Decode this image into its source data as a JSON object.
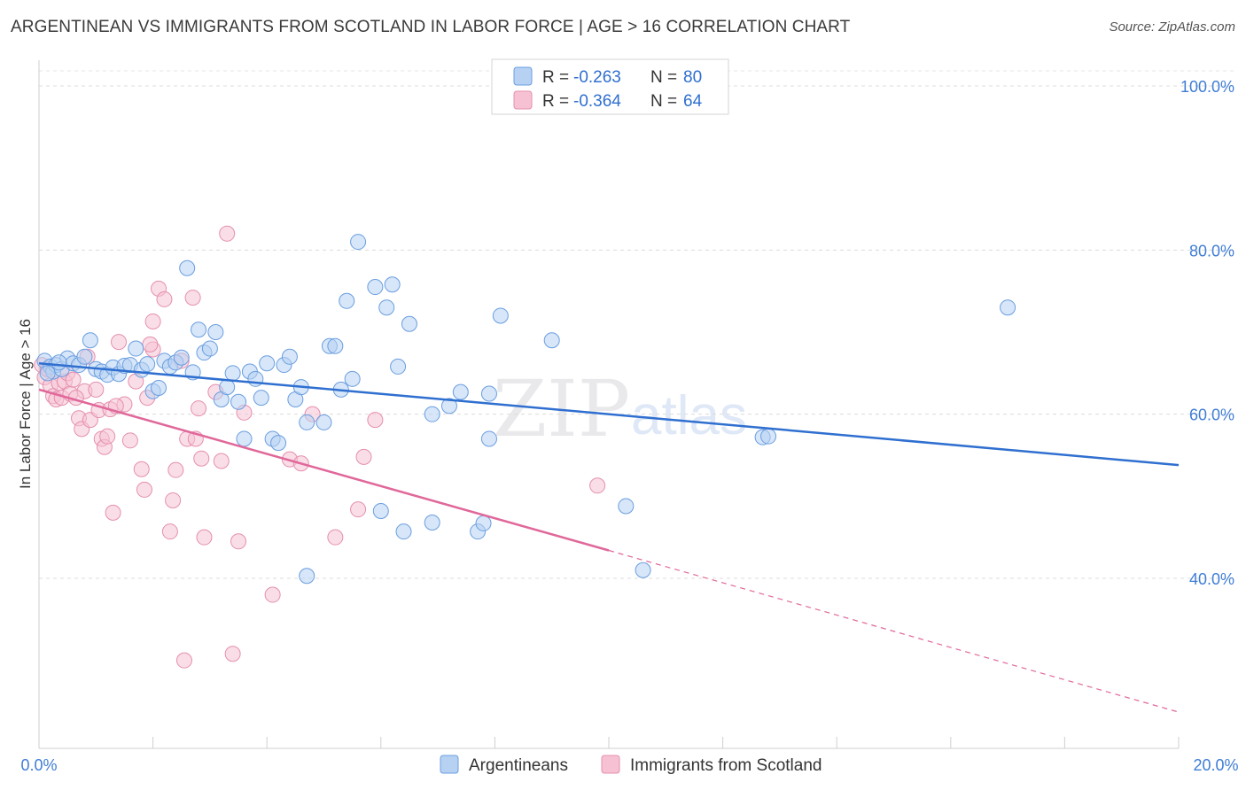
{
  "title": "ARGENTINEAN VS IMMIGRANTS FROM SCOTLAND IN LABOR FORCE | AGE > 16 CORRELATION CHART",
  "source": "Source: ZipAtlas.com",
  "watermark": {
    "zip": "ZIP",
    "atlas": "atlas"
  },
  "colors": {
    "blue": "#3f7dd6",
    "blue_fill": "#b7d1f3",
    "blue_line": "#2f6fd0",
    "pink": "#e8739c",
    "pink_fill": "#f6c2d3",
    "pink_line": "#e0689a"
  },
  "legend": {
    "r_label": "R =",
    "n_label": "N =",
    "series1": {
      "r": "-0.263",
      "n": "80"
    },
    "series2": {
      "r": "-0.364",
      "n": "64"
    }
  },
  "bottom_legend": {
    "series1": "Argentineans",
    "series2": "Immigrants from Scotland"
  },
  "chart_data": {
    "type": "scatter",
    "ylabel": "In Labor Force | Age > 16",
    "xlabel": "",
    "x_tick_labels": {
      "left": "0.0%",
      "right": "20.0%"
    },
    "y_tick_labels": [
      "100.0%",
      "80.0%",
      "60.0%",
      "40.0%"
    ],
    "y_ticks": [
      100,
      80,
      60,
      40
    ],
    "xlim": [
      0,
      20
    ],
    "ylim": [
      22,
      102
    ],
    "series": [
      {
        "name": "Argentineans",
        "trend": {
          "x0": 0,
          "y0": 66.2,
          "x1": 20,
          "y1": 53.8
        },
        "points": [
          [
            0.1,
            66.5
          ],
          [
            0.2,
            65.8
          ],
          [
            0.25,
            65.2
          ],
          [
            0.3,
            66.0
          ],
          [
            0.4,
            65.5
          ],
          [
            0.5,
            66.8
          ],
          [
            0.6,
            66.2
          ],
          [
            0.7,
            66.0
          ],
          [
            0.8,
            67.0
          ],
          [
            0.9,
            69.0
          ],
          [
            1.0,
            65.5
          ],
          [
            1.1,
            65.2
          ],
          [
            1.2,
            64.8
          ],
          [
            1.3,
            65.7
          ],
          [
            1.4,
            64.9
          ],
          [
            1.5,
            65.9
          ],
          [
            1.6,
            66.0
          ],
          [
            1.7,
            68.0
          ],
          [
            1.8,
            65.4
          ],
          [
            1.9,
            66.1
          ],
          [
            2.0,
            62.8
          ],
          [
            2.1,
            63.2
          ],
          [
            2.2,
            66.5
          ],
          [
            2.3,
            65.8
          ],
          [
            2.4,
            66.3
          ],
          [
            2.5,
            66.9
          ],
          [
            2.6,
            77.8
          ],
          [
            2.7,
            65.1
          ],
          [
            2.8,
            70.3
          ],
          [
            2.9,
            67.5
          ],
          [
            3.0,
            68.0
          ],
          [
            3.1,
            70.0
          ],
          [
            3.2,
            61.8
          ],
          [
            3.3,
            63.3
          ],
          [
            3.4,
            65.0
          ],
          [
            3.5,
            61.5
          ],
          [
            3.6,
            57.0
          ],
          [
            3.7,
            65.2
          ],
          [
            3.8,
            64.3
          ],
          [
            3.9,
            62.0
          ],
          [
            4.0,
            66.2
          ],
          [
            4.1,
            57.0
          ],
          [
            4.2,
            56.5
          ],
          [
            4.3,
            66.0
          ],
          [
            4.4,
            67.0
          ],
          [
            4.5,
            61.8
          ],
          [
            4.6,
            63.3
          ],
          [
            4.7,
            59.0
          ],
          [
            5.0,
            59.0
          ],
          [
            5.1,
            68.3
          ],
          [
            5.2,
            68.3
          ],
          [
            5.3,
            63.0
          ],
          [
            5.4,
            73.8
          ],
          [
            5.5,
            64.3
          ],
          [
            5.6,
            81.0
          ],
          [
            5.9,
            75.5
          ],
          [
            6.1,
            73.0
          ],
          [
            6.2,
            75.8
          ],
          [
            6.3,
            65.8
          ],
          [
            6.5,
            71.0
          ],
          [
            6.9,
            60.0
          ],
          [
            7.2,
            61.0
          ],
          [
            7.4,
            62.7
          ],
          [
            7.9,
            62.5
          ],
          [
            7.9,
            57.0
          ],
          [
            8.1,
            72.0
          ],
          [
            9.0,
            69.0
          ],
          [
            10.3,
            48.8
          ],
          [
            10.6,
            41.0
          ],
          [
            12.7,
            57.2
          ],
          [
            12.8,
            57.3
          ],
          [
            17.0,
            73.0
          ],
          [
            6.0,
            48.2
          ],
          [
            6.4,
            45.7
          ],
          [
            6.9,
            46.8
          ],
          [
            7.7,
            45.7
          ],
          [
            7.8,
            46.7
          ],
          [
            4.7,
            40.3
          ],
          [
            0.15,
            65.0
          ],
          [
            0.35,
            66.3
          ]
        ]
      },
      {
        "name": "Immigrants from Scotland",
        "trend": {
          "x0": 0,
          "y0": 63.0,
          "x1": 10.0,
          "y1": 43.4,
          "dash_to_x": 20,
          "dash_to_y": 23.7
        },
        "points": [
          [
            0.05,
            66.0
          ],
          [
            0.1,
            64.5
          ],
          [
            0.2,
            63.5
          ],
          [
            0.25,
            62.2
          ],
          [
            0.3,
            61.8
          ],
          [
            0.35,
            63.8
          ],
          [
            0.4,
            62.0
          ],
          [
            0.45,
            64.0
          ],
          [
            0.5,
            65.0
          ],
          [
            0.55,
            62.5
          ],
          [
            0.6,
            64.2
          ],
          [
            0.7,
            59.5
          ],
          [
            0.75,
            58.2
          ],
          [
            0.8,
            62.8
          ],
          [
            0.85,
            67.0
          ],
          [
            0.9,
            59.3
          ],
          [
            1.0,
            63.0
          ],
          [
            1.05,
            60.5
          ],
          [
            1.1,
            57.0
          ],
          [
            1.15,
            56.0
          ],
          [
            1.2,
            57.3
          ],
          [
            1.3,
            48.0
          ],
          [
            1.4,
            68.8
          ],
          [
            1.5,
            61.2
          ],
          [
            1.6,
            56.8
          ],
          [
            1.7,
            64.0
          ],
          [
            1.8,
            53.3
          ],
          [
            1.85,
            50.8
          ],
          [
            1.9,
            62.0
          ],
          [
            2.0,
            71.3
          ],
          [
            2.1,
            75.3
          ],
          [
            2.2,
            74.0
          ],
          [
            2.3,
            45.7
          ],
          [
            2.35,
            49.5
          ],
          [
            2.4,
            53.2
          ],
          [
            2.5,
            66.5
          ],
          [
            2.55,
            30.0
          ],
          [
            2.6,
            57.0
          ],
          [
            2.7,
            74.2
          ],
          [
            2.75,
            57.0
          ],
          [
            2.8,
            60.7
          ],
          [
            2.85,
            54.6
          ],
          [
            2.9,
            45.0
          ],
          [
            3.1,
            62.7
          ],
          [
            3.2,
            54.3
          ],
          [
            3.3,
            82.0
          ],
          [
            3.4,
            30.8
          ],
          [
            3.5,
            44.5
          ],
          [
            3.6,
            60.2
          ],
          [
            4.1,
            38.0
          ],
          [
            4.4,
            54.5
          ],
          [
            4.6,
            54.0
          ],
          [
            4.8,
            60.0
          ],
          [
            5.2,
            45.0
          ],
          [
            5.6,
            48.4
          ],
          [
            5.7,
            54.8
          ],
          [
            5.9,
            59.3
          ],
          [
            9.8,
            51.3
          ],
          [
            0.15,
            65.5
          ],
          [
            0.65,
            62.0
          ],
          [
            1.25,
            60.6
          ],
          [
            1.35,
            61.0
          ],
          [
            2.0,
            67.9
          ],
          [
            1.95,
            68.5
          ]
        ]
      }
    ]
  }
}
